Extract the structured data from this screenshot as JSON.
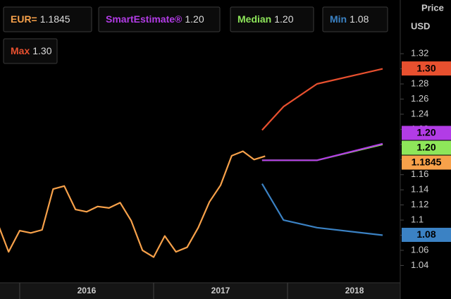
{
  "chart_data": {
    "type": "line",
    "y_axis_label": "Price",
    "y_axis_unit": "USD",
    "xlim": [
      2015.853,
      2018.826
    ],
    "xticks": [
      {
        "value": 2016.5,
        "label": "2016"
      },
      {
        "value": 2017.5,
        "label": "2017"
      },
      {
        "value": 2018.5,
        "label": "2018"
      }
    ],
    "ylim": [
      1.018,
      1.391
    ],
    "yticks": [
      1.04,
      1.06,
      1.08,
      1.1,
      1.12,
      1.14,
      1.16,
      1.18,
      1.2,
      1.22,
      1.24,
      1.26,
      1.28,
      1.3,
      1.32
    ],
    "series": [
      {
        "name": "EUR=",
        "last_label": "1.1845",
        "color": "#f7a14a",
        "x": [
          2015.833,
          2015.917,
          2016.0,
          2016.083,
          2016.167,
          2016.25,
          2016.333,
          2016.417,
          2016.5,
          2016.583,
          2016.667,
          2016.75,
          2016.833,
          2016.917,
          2017.0,
          2017.083,
          2017.167,
          2017.25,
          2017.333,
          2017.417,
          2017.5,
          2017.583,
          2017.667,
          2017.75,
          2017.833
        ],
        "values": [
          1.097,
          1.058,
          1.086,
          1.083,
          1.087,
          1.141,
          1.145,
          1.114,
          1.111,
          1.118,
          1.116,
          1.123,
          1.099,
          1.06,
          1.051,
          1.079,
          1.058,
          1.064,
          1.09,
          1.124,
          1.146,
          1.185,
          1.191,
          1.18,
          1.1845
        ]
      },
      {
        "name": "SmartEstimate®",
        "last_label": "1.20",
        "color": "#b23ce6",
        "x": [
          2017.81,
          2017.97,
          2018.22,
          2018.71
        ],
        "values": [
          1.179,
          1.179,
          1.179,
          1.201
        ]
      },
      {
        "name": "Median",
        "last_label": "1.20",
        "color": "#8ee65a",
        "x": [
          2017.81,
          2017.97,
          2018.22,
          2018.71
        ],
        "values": [
          1.179,
          1.179,
          1.179,
          1.2
        ]
      },
      {
        "name": "Min",
        "last_label": "1.08",
        "color": "#3b82c4",
        "x": [
          2017.81,
          2017.97,
          2018.22,
          2018.71
        ],
        "values": [
          1.148,
          1.1,
          1.09,
          1.08
        ]
      },
      {
        "name": "Max",
        "last_label": "1.30",
        "color": "#e8502f",
        "x": [
          2017.81,
          2017.97,
          2018.22,
          2018.71
        ],
        "values": [
          1.219,
          1.25,
          1.28,
          1.3
        ]
      }
    ]
  }
}
